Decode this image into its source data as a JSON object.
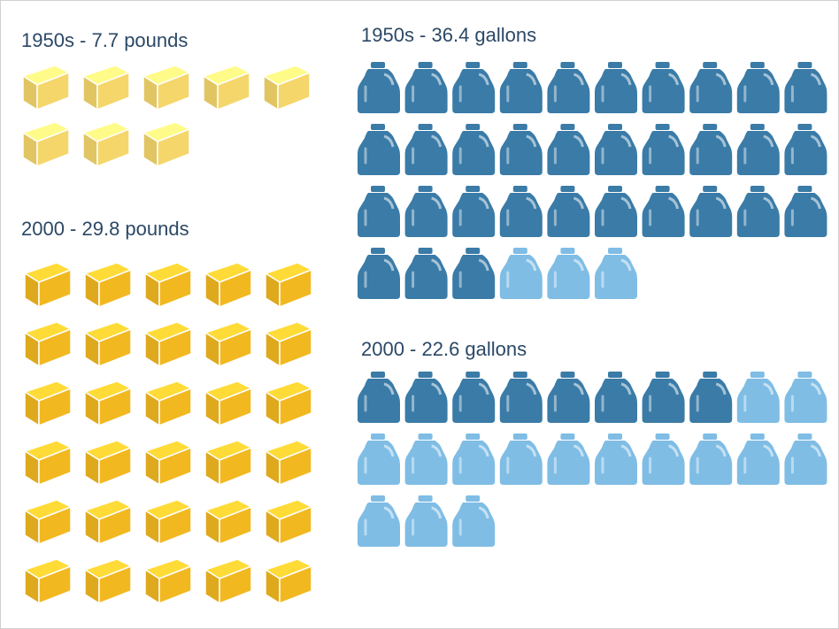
{
  "chart_data": [
    {
      "type": "pictogram",
      "icon": "cheese",
      "title": "1950s - 7.7 pounds",
      "values": [
        8
      ],
      "colors": [
        "#f5d66b"
      ]
    },
    {
      "type": "pictogram",
      "icon": "cheese",
      "title": "2000 - 29.8 pounds",
      "values": [
        30
      ],
      "colors": [
        "#f2b820"
      ]
    },
    {
      "type": "pictogram",
      "icon": "jug",
      "title": "1950s - 36.4 gallons",
      "values": [
        33,
        3
      ],
      "colors": [
        "#3a7ba7",
        "#7fbde5"
      ]
    },
    {
      "type": "pictogram",
      "icon": "jug",
      "title": "2000 - 22.6 gallons",
      "values": [
        8,
        15
      ],
      "colors": [
        "#3a7ba7",
        "#7fbde5"
      ]
    }
  ]
}
